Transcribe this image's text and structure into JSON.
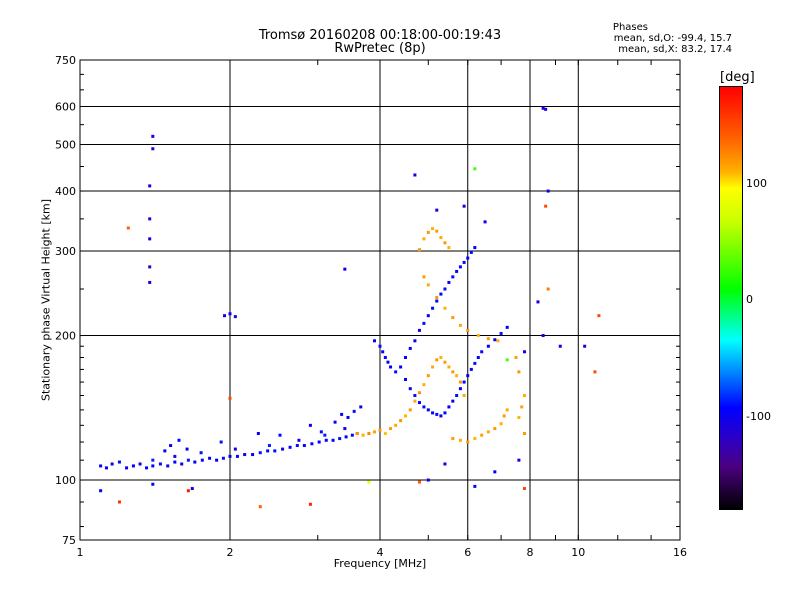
{
  "title_line1": "Tromsø 20160208 00:18:00-00:19:43",
  "title_line2": "RwPretec (8p)",
  "info": {
    "heading": "Phases",
    "line_o": "mean, sd,O: -99.4, 15.7",
    "line_x": "mean, sd,X:  83.2, 17.4"
  },
  "colorbar": {
    "unit": "[deg]",
    "ticks": [
      "100",
      "0",
      "-100"
    ]
  },
  "chart_data": {
    "type": "scatter",
    "title": "Tromsø 20160208 00:18:00-00:19:43",
    "subtitle": "RwPretec (8p)",
    "xlabel": "Frequency [MHz]",
    "ylabel": "Stationary phase Virtual Height [km]",
    "xscale": "log",
    "yscale": "log",
    "xlim": [
      1,
      16
    ],
    "ylim": [
      75,
      750
    ],
    "xticks": [
      1,
      2,
      4,
      6,
      8,
      10,
      16
    ],
    "xtick_labels": [
      "1",
      "2",
      "4",
      "6",
      "8",
      "10",
      "16"
    ],
    "yticks": [
      75,
      100,
      200,
      300,
      400,
      500,
      600,
      750
    ],
    "ytick_labels": [
      "75",
      "100",
      "200",
      "300",
      "400",
      "500",
      "600",
      "750"
    ],
    "xgrid": [
      2,
      4,
      6,
      8,
      10
    ],
    "ygrid": [
      100,
      200,
      300,
      400,
      500,
      600
    ],
    "color_scale": {
      "label": "[deg]",
      "range": [
        -180,
        180
      ],
      "ticks": [
        100,
        0,
        -100
      ]
    },
    "series": [
      {
        "points": [
          [
            1.1,
            107,
            -105
          ],
          [
            1.13,
            106,
            -100
          ],
          [
            1.16,
            108,
            -110
          ],
          [
            1.2,
            109,
            -95
          ],
          [
            1.24,
            106,
            -108
          ],
          [
            1.28,
            107,
            -100
          ],
          [
            1.32,
            108,
            -112
          ],
          [
            1.36,
            106,
            -98
          ],
          [
            1.4,
            107,
            -104
          ],
          [
            1.45,
            108,
            -96
          ],
          [
            1.5,
            107,
            -110
          ],
          [
            1.55,
            109,
            -100
          ],
          [
            1.6,
            108,
            -106
          ],
          [
            1.65,
            110,
            -92
          ],
          [
            1.7,
            109,
            -102
          ],
          [
            1.76,
            110,
            -98
          ],
          [
            1.82,
            111,
            -108
          ],
          [
            1.88,
            110,
            -100
          ],
          [
            1.94,
            111,
            -95
          ],
          [
            2.0,
            112,
            -104
          ],
          [
            2.07,
            112,
            -98
          ],
          [
            2.14,
            113,
            -110
          ],
          [
            2.22,
            113,
            -100
          ],
          [
            2.3,
            114,
            -94
          ],
          [
            2.38,
            115,
            -102
          ],
          [
            2.46,
            115,
            -98
          ],
          [
            2.55,
            116,
            -108
          ],
          [
            2.64,
            117,
            -100
          ],
          [
            2.73,
            118,
            -96
          ],
          [
            2.82,
            118,
            -104
          ],
          [
            2.92,
            119,
            -98
          ],
          [
            3.02,
            120,
            -102
          ],
          [
            3.12,
            121,
            -110
          ],
          [
            3.22,
            121,
            -100
          ],
          [
            3.32,
            122,
            -96
          ],
          [
            3.42,
            123,
            -104
          ],
          [
            3.52,
            124,
            -98
          ],
          [
            3.6,
            125,
            -100
          ],
          [
            1.4,
            110,
            -90
          ],
          [
            1.55,
            112,
            -120
          ],
          [
            1.75,
            114,
            -95
          ],
          [
            2.05,
            116,
            -112
          ],
          [
            2.4,
            118,
            -90
          ],
          [
            2.75,
            121,
            -112
          ],
          [
            3.1,
            124,
            -92
          ],
          [
            3.4,
            128,
            -108
          ],
          [
            1.48,
            115,
            -100
          ],
          [
            1.52,
            118,
            -105
          ],
          [
            1.58,
            121,
            -98
          ],
          [
            1.64,
            116,
            -100
          ],
          [
            1.92,
            120,
            -95
          ],
          [
            2.28,
            125,
            -102
          ],
          [
            2.52,
            124,
            -98
          ],
          [
            2.9,
            130,
            -104
          ],
          [
            3.05,
            126,
            -96
          ],
          [
            3.25,
            132,
            -110
          ],
          [
            3.35,
            137,
            -98
          ],
          [
            3.45,
            135,
            -104
          ],
          [
            3.55,
            139,
            -96
          ],
          [
            3.66,
            142,
            -108
          ],
          [
            1.1,
            95,
            -100
          ],
          [
            1.4,
            98,
            -105
          ],
          [
            1.68,
            96,
            -110
          ],
          [
            3.6,
            125,
            120
          ],
          [
            3.7,
            124,
            110
          ],
          [
            3.8,
            125,
            125
          ],
          [
            3.9,
            126,
            115
          ],
          [
            4.0,
            127,
            120
          ],
          [
            4.1,
            125,
            105
          ],
          [
            4.2,
            128,
            118
          ],
          [
            4.3,
            130,
            112
          ],
          [
            4.4,
            133,
            120
          ],
          [
            4.5,
            136,
            108
          ],
          [
            4.6,
            140,
            118
          ],
          [
            4.7,
            146,
            112
          ],
          [
            4.8,
            152,
            122
          ],
          [
            4.9,
            158,
            110
          ],
          [
            5.0,
            165,
            118
          ],
          [
            5.1,
            172,
            112
          ],
          [
            5.2,
            178,
            120
          ],
          [
            5.3,
            180,
            108
          ],
          [
            5.4,
            176,
            118
          ],
          [
            5.5,
            172,
            112
          ],
          [
            5.6,
            168,
            120
          ],
          [
            5.7,
            165,
            110
          ],
          [
            5.8,
            160,
            118
          ],
          [
            5.9,
            150,
            112
          ],
          [
            5.6,
            122,
            118
          ],
          [
            5.8,
            121,
            112
          ],
          [
            6.0,
            120,
            120
          ],
          [
            6.2,
            122,
            108
          ],
          [
            6.4,
            124,
            118
          ],
          [
            6.6,
            126,
            112
          ],
          [
            6.8,
            128,
            120
          ],
          [
            7.0,
            131,
            110
          ],
          [
            7.1,
            136,
            118
          ],
          [
            7.2,
            140,
            112
          ],
          [
            4.8,
            302,
            118
          ],
          [
            4.9,
            318,
            112
          ],
          [
            5.0,
            328,
            120
          ],
          [
            5.1,
            334,
            110
          ],
          [
            5.2,
            330,
            118
          ],
          [
            5.3,
            320,
            112
          ],
          [
            5.4,
            312,
            120
          ],
          [
            5.5,
            305,
            110
          ],
          [
            4.9,
            265,
            118
          ],
          [
            5.0,
            255,
            112
          ],
          [
            5.2,
            240,
            120
          ],
          [
            5.4,
            228,
            110
          ],
          [
            5.6,
            218,
            118
          ],
          [
            5.8,
            210,
            112
          ],
          [
            6.0,
            205,
            120
          ],
          [
            6.3,
            200,
            110
          ],
          [
            6.6,
            197,
            118
          ],
          [
            6.9,
            195,
            112
          ],
          [
            3.9,
            195,
            -100
          ],
          [
            4.0,
            190,
            -96
          ],
          [
            4.05,
            185,
            -104
          ],
          [
            4.1,
            180,
            -98
          ],
          [
            4.15,
            176,
            -110
          ],
          [
            4.2,
            172,
            -100
          ],
          [
            4.3,
            168,
            -96
          ],
          [
            4.4,
            172,
            -104
          ],
          [
            4.5,
            180,
            -98
          ],
          [
            4.6,
            188,
            -102
          ],
          [
            4.7,
            195,
            -100
          ],
          [
            4.8,
            205,
            -110
          ],
          [
            4.9,
            212,
            -96
          ],
          [
            5.0,
            220,
            -104
          ],
          [
            5.1,
            228,
            -98
          ],
          [
            5.2,
            236,
            -100
          ],
          [
            5.3,
            244,
            -108
          ],
          [
            5.4,
            250,
            -96
          ],
          [
            5.5,
            258,
            -104
          ],
          [
            5.6,
            265,
            -98
          ],
          [
            5.7,
            272,
            -110
          ],
          [
            5.8,
            278,
            -100
          ],
          [
            5.9,
            284,
            -96
          ],
          [
            6.0,
            290,
            -104
          ],
          [
            6.1,
            298,
            -98
          ],
          [
            6.2,
            305,
            -100
          ],
          [
            4.5,
            162,
            -100
          ],
          [
            4.6,
            155,
            -110
          ],
          [
            4.7,
            150,
            -96
          ],
          [
            4.8,
            145,
            -104
          ],
          [
            4.9,
            142,
            -98
          ],
          [
            5.0,
            140,
            -100
          ],
          [
            5.1,
            138,
            -108
          ],
          [
            5.2,
            137,
            -96
          ],
          [
            5.3,
            136,
            -104
          ],
          [
            5.4,
            138,
            -98
          ],
          [
            5.5,
            142,
            -100
          ],
          [
            5.6,
            146,
            -110
          ],
          [
            5.7,
            150,
            -96
          ],
          [
            5.8,
            155,
            -104
          ],
          [
            5.9,
            160,
            -98
          ],
          [
            6.0,
            165,
            -100
          ],
          [
            6.1,
            170,
            -108
          ],
          [
            6.2,
            175,
            -96
          ],
          [
            6.3,
            180,
            -104
          ],
          [
            6.4,
            185,
            -98
          ],
          [
            6.6,
            190,
            -100
          ],
          [
            6.8,
            196,
            -108
          ],
          [
            7.0,
            202,
            -96
          ],
          [
            7.2,
            208,
            -104
          ],
          [
            1.4,
            520,
            -110
          ],
          [
            1.4,
            490,
            -120
          ],
          [
            1.38,
            410,
            -115
          ],
          [
            1.38,
            350,
            -118
          ],
          [
            1.38,
            318,
            -110
          ],
          [
            1.38,
            278,
            -122
          ],
          [
            1.38,
            258,
            -115
          ],
          [
            1.95,
            220,
            -110
          ],
          [
            2.0,
            222,
            -105
          ],
          [
            2.05,
            219,
            -115
          ],
          [
            3.4,
            275,
            -110
          ],
          [
            4.7,
            432,
            -115
          ],
          [
            6.2,
            445,
            20
          ],
          [
            5.2,
            365,
            -118
          ],
          [
            8.5,
            595,
            -110
          ],
          [
            8.6,
            592,
            -112
          ],
          [
            8.6,
            372,
            150
          ],
          [
            8.7,
            400,
            -110
          ],
          [
            9.2,
            190,
            -110
          ],
          [
            10.3,
            190,
            -120
          ],
          [
            8.5,
            200,
            -110
          ],
          [
            7.8,
            185,
            -108
          ],
          [
            8.7,
            250,
            130
          ],
          [
            8.3,
            235,
            -112
          ],
          [
            1.25,
            335,
            140
          ],
          [
            2.0,
            148,
            150
          ],
          [
            2.3,
            88,
            140
          ],
          [
            1.2,
            90,
            160
          ],
          [
            1.65,
            95,
            170
          ],
          [
            2.9,
            89,
            165
          ],
          [
            11.0,
            220,
            150
          ],
          [
            10.8,
            168,
            150
          ],
          [
            6.5,
            345,
            -110
          ],
          [
            5.9,
            372,
            -112
          ],
          [
            7.5,
            180,
            115
          ],
          [
            7.6,
            168,
            120
          ],
          [
            7.8,
            150,
            110
          ],
          [
            7.7,
            142,
            115
          ],
          [
            7.6,
            135,
            108
          ],
          [
            7.8,
            125,
            118
          ],
          [
            7.2,
            178,
            20
          ],
          [
            7.6,
            110,
            -110
          ],
          [
            6.8,
            104,
            -105
          ],
          [
            6.2,
            97,
            -100
          ],
          [
            5.0,
            100,
            -105
          ],
          [
            4.8,
            99,
            140
          ],
          [
            5.4,
            108,
            -110
          ],
          [
            7.8,
            96,
            150
          ],
          [
            3.8,
            99,
            80
          ]
        ]
      }
    ]
  }
}
